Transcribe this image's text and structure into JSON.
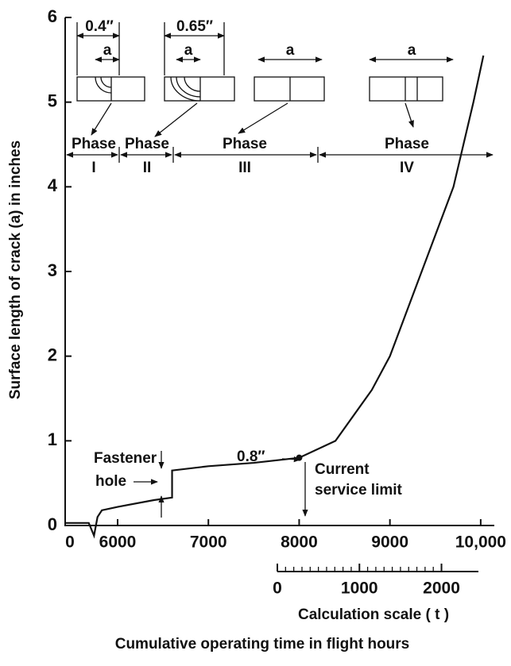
{
  "chart_data": {
    "type": "line",
    "y_label": "Surface length of crack (a) in inches",
    "x_label": "Cumulative operating time in flight hours",
    "x2_label": "Calculation scale ( t )",
    "x": [
      0,
      2700,
      3300,
      3700,
      4200,
      6000,
      6400,
      6600,
      6600,
      7000,
      7500,
      8000,
      8400,
      8800,
      9000,
      9350,
      9700,
      9920,
      10030
    ],
    "series": [
      {
        "color": "#111111",
        "values": [
          0.03,
          0.03,
          -0.12,
          0.1,
          0.18,
          0.22,
          0.3,
          0.33,
          0.65,
          0.7,
          0.74,
          0.8,
          1.0,
          1.6,
          2.0,
          3.0,
          4.0,
          5.0,
          5.55
        ]
      }
    ],
    "xlim": [
      0,
      10150
    ],
    "xticks": [
      0,
      6000,
      7000,
      8000,
      9000,
      {
        "value": 10000,
        "label": "10,000"
      }
    ],
    "ylim": [
      0,
      6
    ],
    "yticks": [
      0,
      1,
      2,
      3,
      4,
      5,
      6
    ],
    "x2lim": [
      0,
      2450
    ],
    "x2ticks": [
      0,
      1000,
      2000
    ],
    "annotations": {
      "dim1": "0.4″",
      "dim2": "0.65″",
      "crack_a": "a",
      "phase": "Phase",
      "numerals": [
        "I",
        "II",
        "III",
        "IV"
      ],
      "fastener": "Fastener",
      "hole": "hole",
      "limit_value": "0.8″",
      "current": "Current",
      "service_limit": "service limit"
    }
  }
}
